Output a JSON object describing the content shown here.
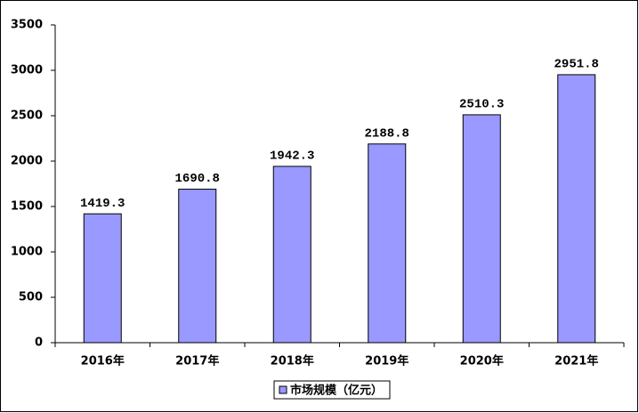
{
  "chart_data": {
    "type": "bar",
    "categories": [
      "2016年",
      "2017年",
      "2018年",
      "2019年",
      "2020年",
      "2021年"
    ],
    "series": [
      {
        "name": "市场规模（亿元）",
        "color": "#9999ff",
        "values": [
          1419.3,
          1690.8,
          1942.3,
          2188.8,
          2510.3,
          2951.8
        ]
      }
    ],
    "ylim": [
      0,
      3500
    ],
    "yticks": [
      0,
      500,
      1000,
      1500,
      2000,
      2500,
      3000,
      3500
    ],
    "grid": false,
    "legend": "bottom"
  }
}
